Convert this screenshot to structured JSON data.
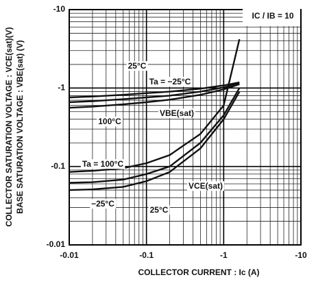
{
  "chart_data": {
    "type": "line",
    "x_label": "COLLECTOR CURRENT : Ic   (A)",
    "y_labels": [
      "COLLECTOR SATURATION VOLTAGE : VCE(sat)(V)",
      "BASE SATURATION VOLTAGE : VBE(sat) (V)"
    ],
    "annotations": [
      "IC / IB = 10",
      "25°C",
      "Ta = −25°C",
      "VBE(sat)",
      "100°C",
      "Ta = 100°C",
      "VCE(sat)",
      "−25°C",
      "25°C"
    ],
    "x": [
      -0.01,
      -0.02,
      -0.05,
      -0.1,
      -0.2,
      -0.5,
      -1,
      -1.6
    ],
    "series": [
      {
        "color": "#111",
        "values": [
          -0.76,
          -0.78,
          -0.82,
          -0.86,
          -0.9,
          -0.98,
          -1.08,
          -1.18
        ]
      },
      {
        "color": "#111",
        "values": [
          -0.66,
          -0.68,
          -0.72,
          -0.76,
          -0.8,
          -0.9,
          -1.02,
          -1.15
        ]
      },
      {
        "color": "#111",
        "values": [
          -0.56,
          -0.58,
          -0.62,
          -0.66,
          -0.71,
          -0.82,
          -0.96,
          -1.12
        ]
      },
      {
        "color": "#111",
        "values": [
          -0.085,
          -0.088,
          -0.095,
          -0.11,
          -0.14,
          -0.26,
          -0.6,
          -4.2
        ]
      },
      {
        "color": "#111",
        "values": [
          -0.062,
          -0.063,
          -0.068,
          -0.08,
          -0.1,
          -0.2,
          -0.45,
          -1.0
        ]
      },
      {
        "color": "#111",
        "values": [
          -0.05,
          -0.051,
          -0.055,
          -0.065,
          -0.085,
          -0.17,
          -0.4,
          -0.9
        ]
      }
    ],
    "xlim": [
      -0.01,
      -10
    ],
    "xticks": [
      -0.01,
      -0.1,
      -1,
      -10
    ],
    "ylim": [
      -0.01,
      -10
    ],
    "yticks": [
      -0.01,
      -0.1,
      -1,
      -10
    ],
    "log_scale": true,
    "grid": true
  }
}
